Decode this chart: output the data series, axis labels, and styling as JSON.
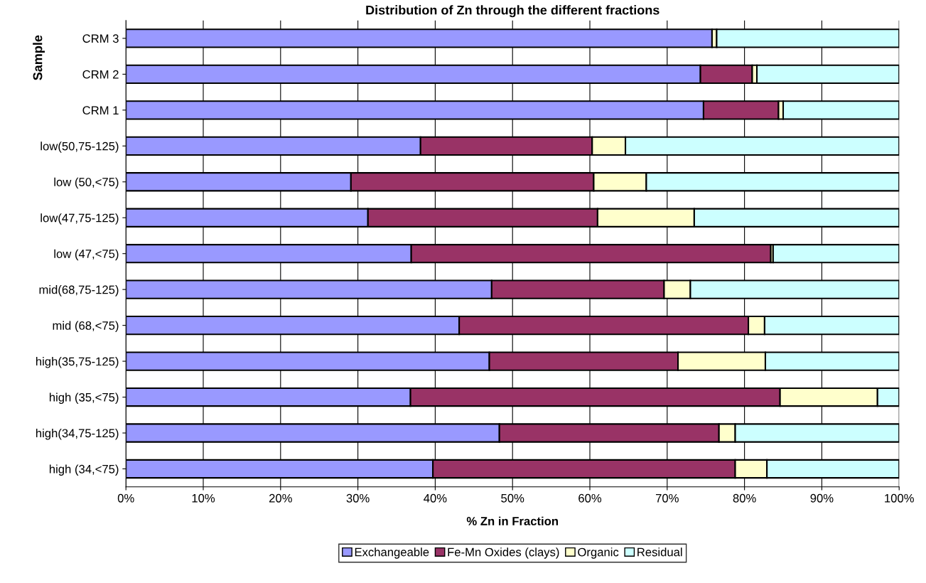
{
  "chart_data": {
    "type": "bar",
    "orientation": "horizontal",
    "stacked": true,
    "title": "Distribution of Zn through the different fractions",
    "xlabel": "% Zn in Fraction",
    "ylabel": "Sample",
    "categories": [
      "CRM 3",
      "CRM 2",
      "CRM 1",
      "low(50,75-125)",
      "low (50,<75)",
      "low(47,75-125)",
      "low (47,<75)",
      "mid(68,75-125)",
      "mid (68,<75)",
      "high(35,75-125)",
      "high (35,<75)",
      "high(34,75-125)",
      "high (34,<75)"
    ],
    "series": [
      {
        "name": "Exchangeable",
        "color": "#9999ff",
        "values": [
          75.8,
          74.3,
          74.7,
          38.1,
          29.1,
          31.3,
          36.9,
          47.3,
          43.1,
          47.0,
          36.8,
          48.3,
          39.7
        ]
      },
      {
        "name": "Fe-Mn Oxides (clays)",
        "color": "#993366",
        "values": [
          null,
          6.7,
          9.7,
          22.2,
          31.4,
          29.7,
          46.5,
          22.3,
          37.4,
          24.4,
          47.8,
          28.4,
          39.1
        ]
      },
      {
        "name": "Organic",
        "color": "#ffffcc",
        "values": [
          0.6,
          0.6,
          0.6,
          4.3,
          6.8,
          12.5,
          0.3,
          3.4,
          2.1,
          11.3,
          12.6,
          2.1,
          4.1
        ]
      },
      {
        "name": "Residual",
        "color": "#ccffff",
        "values": [
          23.6,
          18.4,
          15.0,
          35.4,
          32.7,
          26.5,
          16.3,
          27.0,
          17.4,
          17.3,
          2.8,
          21.2,
          17.1
        ]
      }
    ],
    "xlim": [
      0,
      100
    ],
    "xticks": [
      {
        "value": 0,
        "label": "0%"
      },
      {
        "value": 10,
        "label": "10%"
      },
      {
        "value": 20,
        "label": "20%"
      },
      {
        "value": 30,
        "label": "30%"
      },
      {
        "value": 40,
        "label": "40%"
      },
      {
        "value": 50,
        "label": "50%"
      },
      {
        "value": 60,
        "label": "60%"
      },
      {
        "value": 70,
        "label": "70%"
      },
      {
        "value": 80,
        "label": "80%"
      },
      {
        "value": 90,
        "label": "90%"
      },
      {
        "value": 100,
        "label": "100%"
      }
    ],
    "grid": "x",
    "legend": "bottom"
  }
}
